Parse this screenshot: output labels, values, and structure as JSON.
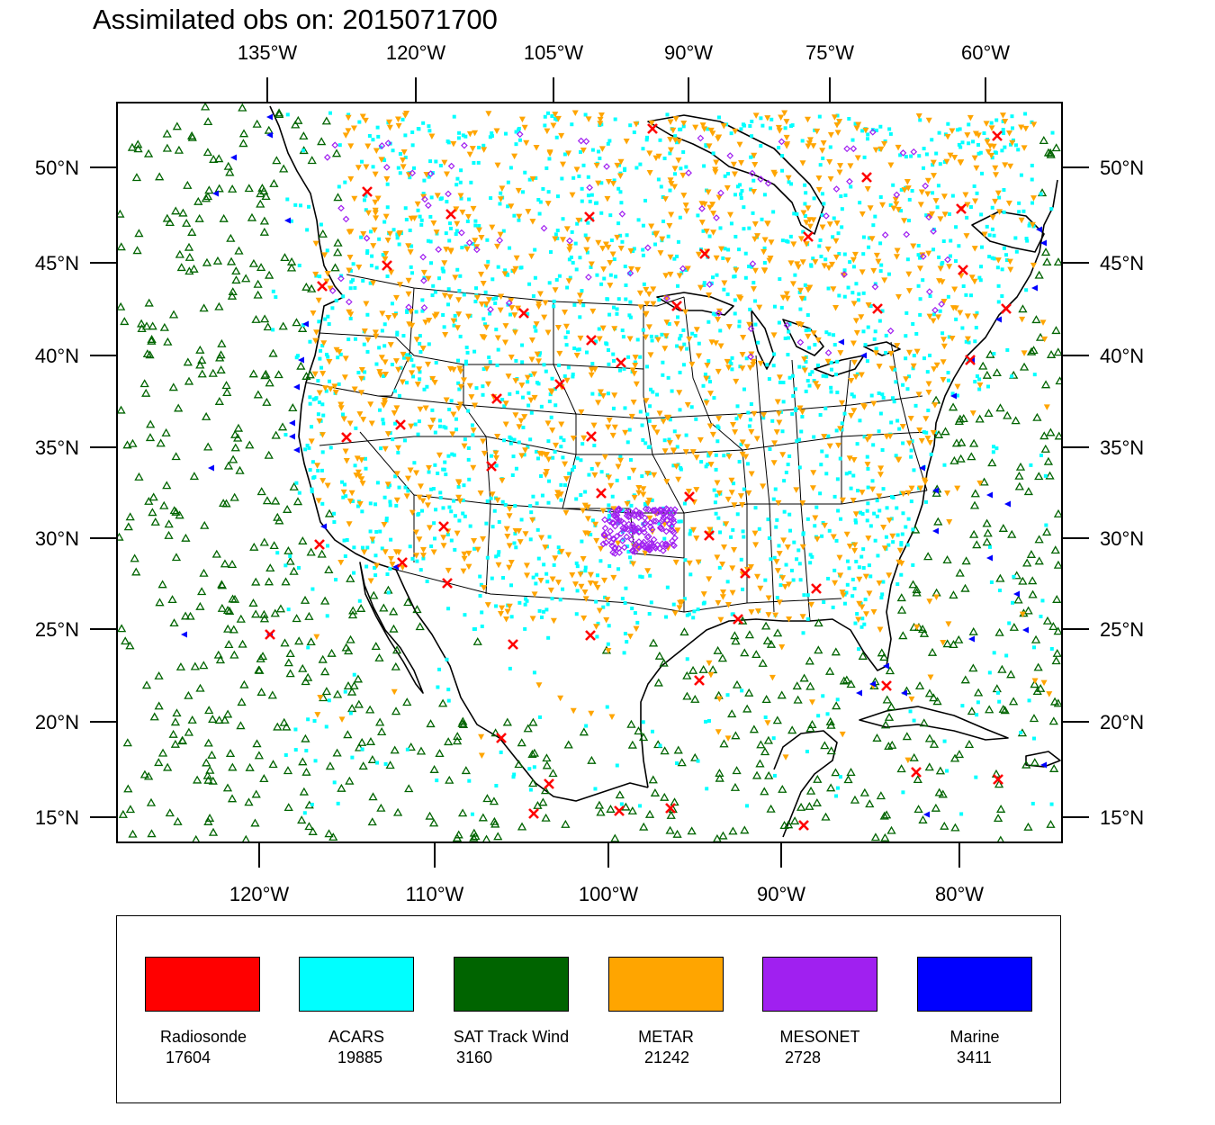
{
  "title": "Assimilated obs on: 2015071700",
  "map": {
    "top_axis_labels": [
      "135°W",
      "120°W",
      "105°W",
      "90°W",
      "75°W",
      "60°W"
    ],
    "bottom_axis_labels": [
      "120°W",
      "110°W",
      "100°W",
      "90°W",
      "80°W"
    ],
    "left_axis_labels": [
      "50°N",
      "45°N",
      "40°N",
      "35°N",
      "30°N",
      "25°N",
      "20°N",
      "15°N"
    ],
    "right_axis_labels": [
      "50°N",
      "45°N",
      "40°N",
      "35°N",
      "30°N",
      "25°N",
      "20°N",
      "15°N"
    ],
    "domain_lon_range": [
      -128,
      -74
    ],
    "domain_lat_range": [
      13.5,
      53.5
    ]
  },
  "legend": [
    {
      "label": "Radiosonde",
      "count": "17604",
      "color": "#ff0000",
      "marker": "x"
    },
    {
      "label": "ACARS",
      "count": "19885",
      "color": "#00ffff",
      "marker": "square"
    },
    {
      "label": "SAT Track Wind",
      "count": "3160",
      "color": "#006400",
      "marker": "triangle-up"
    },
    {
      "label": "METAR",
      "count": "21242",
      "color": "#ffa500",
      "marker": "triangle-down"
    },
    {
      "label": "MESONET",
      "count": "2728",
      "color": "#a020f0",
      "marker": "diamond"
    },
    {
      "label": "Marine",
      "count": "3411",
      "color": "#0000ff",
      "marker": "triangle-left"
    }
  ]
}
